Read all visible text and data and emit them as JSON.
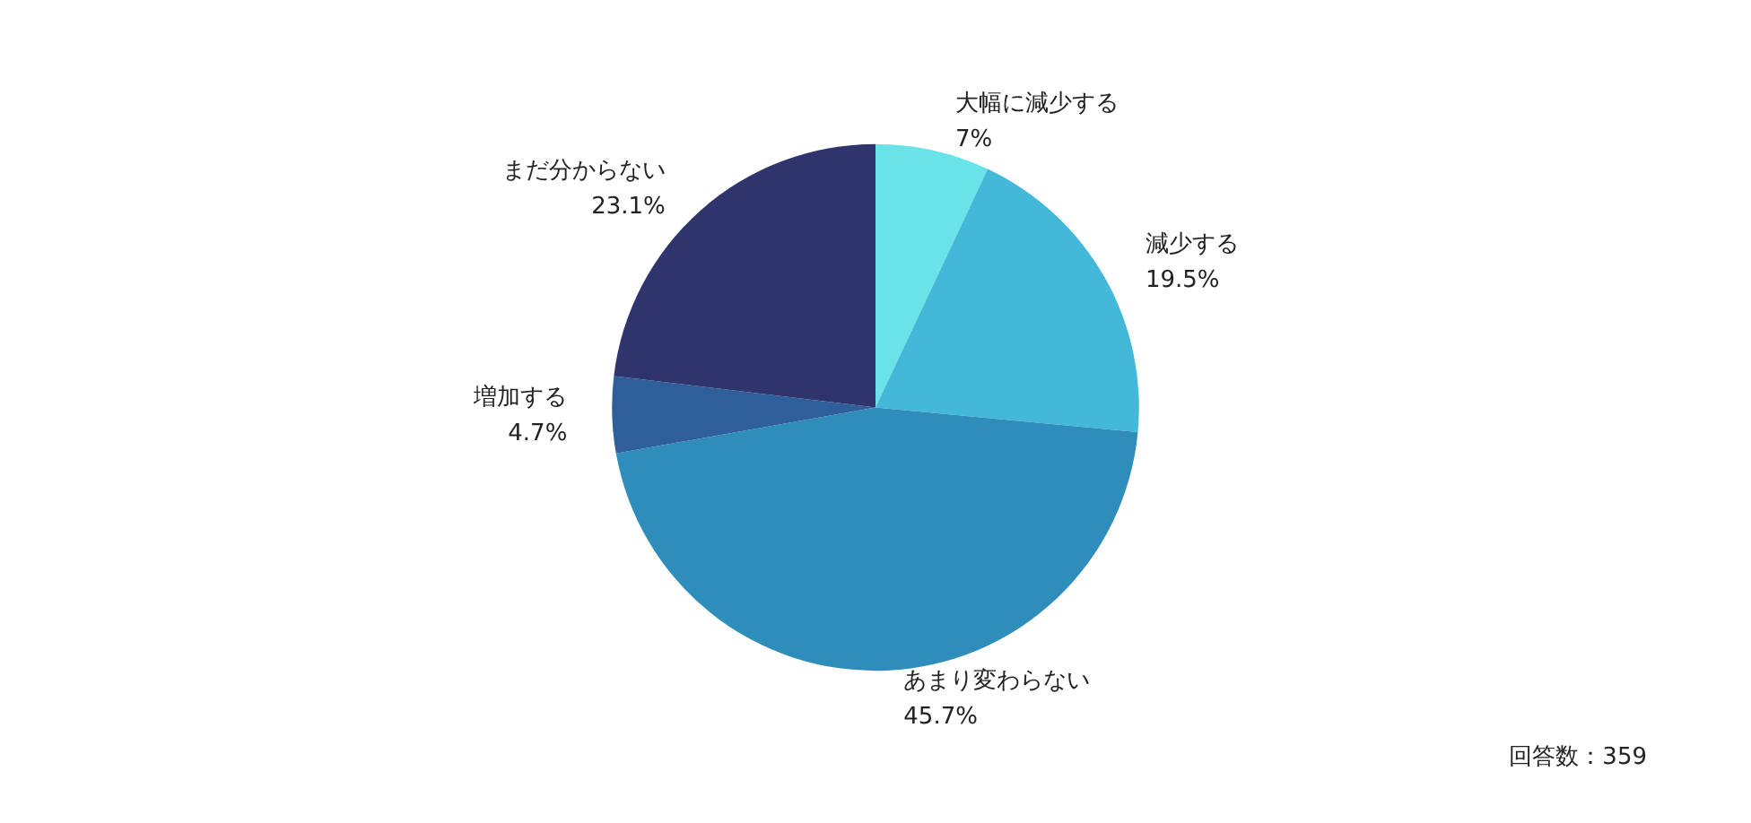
{
  "chart_data": {
    "type": "pie",
    "categories": [
      "大幅に減少する",
      "減少する",
      "あまり変わらない",
      "増加する",
      "まだ分からない"
    ],
    "values": [
      7,
      19.5,
      45.7,
      4.7,
      23.1
    ],
    "colors": [
      "#6ae3e8",
      "#43b8d8",
      "#2e8dbb",
      "#2e5f9a",
      "#2f346c"
    ],
    "value_labels": [
      "7%",
      "19.5%",
      "45.7%",
      "4.7%",
      "23.1%"
    ],
    "annotations": [
      "回答数：359"
    ],
    "legend": false
  }
}
